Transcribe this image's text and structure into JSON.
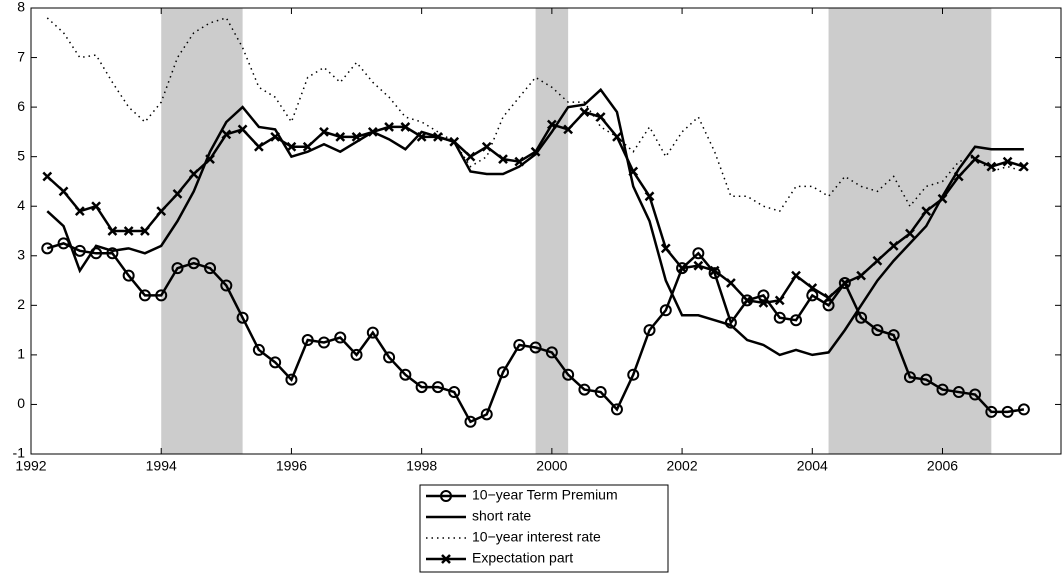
{
  "chart_data": {
    "type": "line",
    "x": [
      1992.25,
      1992.5,
      1992.75,
      1993,
      1993.25,
      1993.5,
      1993.75,
      1994,
      1994.25,
      1994.5,
      1994.75,
      1995,
      1995.25,
      1995.5,
      1995.75,
      1996,
      1996.25,
      1996.5,
      1996.75,
      1997,
      1997.25,
      1997.5,
      1997.75,
      1998,
      1998.25,
      1998.5,
      1998.75,
      1999,
      1999.25,
      1999.5,
      1999.75,
      2000,
      2000.25,
      2000.5,
      2000.75,
      2001,
      2001.25,
      2001.5,
      2001.75,
      2002,
      2002.25,
      2002.5,
      2002.75,
      2003,
      2003.25,
      2003.5,
      2003.75,
      2004,
      2004.25,
      2004.5,
      2004.75,
      2005,
      2005.25,
      2005.5,
      2005.75,
      2006,
      2006.25,
      2006.5,
      2006.75,
      2007,
      2007.25
    ],
    "series": [
      {
        "name": "10−year Term Premium",
        "color": "#000000",
        "marker": "circle",
        "linestyle": "solid",
        "values": [
          3.15,
          3.25,
          3.1,
          3.05,
          3.05,
          2.6,
          2.2,
          2.2,
          2.75,
          2.85,
          2.75,
          2.4,
          1.75,
          1.1,
          0.85,
          0.5,
          1.3,
          1.25,
          1.35,
          1.0,
          1.45,
          0.95,
          0.6,
          0.35,
          0.35,
          0.25,
          -0.35,
          -0.2,
          0.65,
          1.2,
          1.15,
          1.05,
          0.6,
          0.3,
          0.25,
          -0.1,
          0.6,
          1.5,
          1.9,
          2.75,
          3.05,
          2.65,
          1.65,
          2.1,
          2.2,
          1.75,
          1.7,
          2.2,
          2.0,
          2.45,
          1.75,
          1.5,
          1.4,
          0.55,
          0.5,
          0.3,
          0.25,
          0.2,
          -0.15,
          -0.15,
          -0.1
        ]
      },
      {
        "name": "short rate",
        "color": "#000000",
        "marker": "none",
        "linestyle": "solid",
        "values": [
          3.9,
          3.6,
          2.7,
          3.2,
          3.1,
          3.15,
          3.05,
          3.2,
          3.7,
          4.3,
          5.1,
          5.7,
          6.0,
          5.6,
          5.55,
          5.0,
          5.1,
          5.25,
          5.1,
          5.3,
          5.5,
          5.35,
          5.15,
          5.5,
          5.4,
          5.3,
          4.7,
          4.65,
          4.65,
          4.8,
          5.05,
          5.5,
          6.0,
          6.05,
          6.35,
          5.9,
          4.4,
          3.7,
          2.5,
          1.8,
          1.8,
          1.7,
          1.6,
          1.3,
          1.2,
          1.0,
          1.1,
          1.0,
          1.05,
          1.5,
          2.0,
          2.5,
          2.9,
          3.25,
          3.6,
          4.2,
          4.75,
          5.2,
          5.15,
          5.15,
          5.15
        ]
      },
      {
        "name": "10−year interest rate",
        "color": "#000000",
        "marker": "none",
        "linestyle": "dotted",
        "values": [
          7.8,
          7.5,
          7.0,
          7.05,
          6.5,
          6.0,
          5.7,
          6.1,
          7.0,
          7.5,
          7.7,
          7.8,
          7.2,
          6.4,
          6.2,
          5.7,
          6.6,
          6.8,
          6.5,
          6.9,
          6.5,
          6.2,
          5.8,
          5.7,
          5.5,
          5.3,
          4.8,
          5.0,
          5.8,
          6.2,
          6.6,
          6.4,
          6.1,
          6.1,
          5.6,
          5.4,
          5.1,
          5.6,
          5.0,
          5.5,
          5.8,
          5.1,
          4.2,
          4.2,
          4.0,
          3.9,
          4.4,
          4.4,
          4.2,
          4.6,
          4.4,
          4.3,
          4.6,
          4.0,
          4.4,
          4.5,
          4.9,
          5.0,
          4.7,
          4.8,
          4.7
        ]
      },
      {
        "name": "Expectation part",
        "color": "#000000",
        "marker": "x",
        "linestyle": "solid",
        "values": [
          4.6,
          4.3,
          3.9,
          4.0,
          3.5,
          3.5,
          3.5,
          3.9,
          4.25,
          4.65,
          4.95,
          5.45,
          5.55,
          5.2,
          5.4,
          5.2,
          5.2,
          5.5,
          5.4,
          5.4,
          5.5,
          5.6,
          5.6,
          5.4,
          5.4,
          5.3,
          5.0,
          5.2,
          4.95,
          4.9,
          5.1,
          5.65,
          5.55,
          5.9,
          5.8,
          5.4,
          4.7,
          4.2,
          3.15,
          2.75,
          2.8,
          2.7,
          2.45,
          2.1,
          2.05,
          2.1,
          2.6,
          2.35,
          2.15,
          2.45,
          2.6,
          2.9,
          3.2,
          3.45,
          3.9,
          4.15,
          4.6,
          4.95,
          4.8,
          4.9,
          4.8
        ]
      }
    ],
    "shaded_regions": [
      [
        1994.0,
        1995.25
      ],
      [
        1999.75,
        2000.25
      ],
      [
        2004.25,
        2006.75
      ]
    ],
    "shade_color": "#cccccc",
    "xlim": [
      1992,
      2007.82
    ],
    "xticks": [
      1992,
      1994,
      1996,
      1998,
      2000,
      2002,
      2004,
      2006
    ],
    "ylim": [
      -1,
      8
    ],
    "yticks": [
      -1,
      0,
      1,
      2,
      3,
      4,
      5,
      6,
      7,
      8
    ],
    "grid": false,
    "legend": "bottom"
  }
}
